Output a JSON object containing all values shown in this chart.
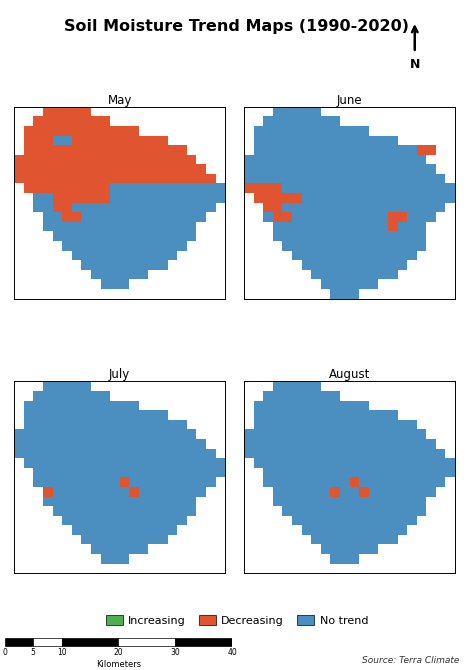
{
  "title": "Soil Moisture Trend Maps (1990-2020)",
  "months": [
    "May",
    "June",
    "July",
    "August"
  ],
  "colors": {
    "increasing": "#4CAF50",
    "decreasing": "#E05530",
    "no_trend": "#4A8FC0",
    "background": "#FFFFFF"
  },
  "legend": [
    {
      "label": "Increasing",
      "color": "#4CAF50"
    },
    {
      "label": "Decreasing",
      "color": "#E05530"
    },
    {
      "label": "No trend",
      "color": "#4A8FC0"
    }
  ],
  "may_grid": [
    [
      0,
      0,
      0,
      3,
      3,
      3,
      3,
      3,
      0,
      0,
      0,
      0,
      0,
      0,
      0,
      0,
      0,
      0,
      0,
      0,
      0,
      0
    ],
    [
      0,
      0,
      3,
      3,
      3,
      3,
      3,
      3,
      3,
      3,
      0,
      0,
      0,
      0,
      0,
      0,
      0,
      0,
      0,
      0,
      0,
      0
    ],
    [
      0,
      3,
      3,
      3,
      3,
      3,
      3,
      3,
      3,
      3,
      3,
      3,
      3,
      0,
      0,
      0,
      0,
      0,
      0,
      0,
      0,
      0
    ],
    [
      0,
      3,
      3,
      3,
      2,
      2,
      3,
      3,
      3,
      3,
      3,
      3,
      3,
      3,
      3,
      3,
      0,
      0,
      0,
      0,
      0,
      0
    ],
    [
      0,
      3,
      3,
      3,
      3,
      3,
      3,
      3,
      3,
      3,
      3,
      3,
      3,
      3,
      3,
      3,
      3,
      3,
      0,
      0,
      0,
      0
    ],
    [
      3,
      3,
      3,
      3,
      3,
      3,
      3,
      3,
      3,
      3,
      3,
      3,
      3,
      3,
      3,
      3,
      3,
      3,
      3,
      0,
      0,
      0
    ],
    [
      3,
      3,
      3,
      3,
      3,
      3,
      3,
      3,
      3,
      3,
      3,
      3,
      3,
      3,
      3,
      3,
      3,
      3,
      3,
      3,
      0,
      0
    ],
    [
      3,
      3,
      3,
      3,
      3,
      3,
      3,
      3,
      3,
      3,
      3,
      3,
      3,
      3,
      3,
      3,
      3,
      3,
      3,
      3,
      3,
      0
    ],
    [
      0,
      3,
      3,
      3,
      3,
      3,
      3,
      3,
      3,
      3,
      2,
      2,
      2,
      2,
      2,
      2,
      2,
      2,
      2,
      2,
      2,
      2
    ],
    [
      0,
      0,
      2,
      2,
      3,
      3,
      3,
      3,
      3,
      3,
      2,
      2,
      2,
      2,
      2,
      2,
      2,
      2,
      2,
      2,
      2,
      2
    ],
    [
      0,
      0,
      2,
      2,
      3,
      3,
      2,
      2,
      2,
      2,
      2,
      2,
      2,
      2,
      2,
      2,
      2,
      2,
      2,
      2,
      2,
      0
    ],
    [
      0,
      0,
      0,
      2,
      2,
      3,
      3,
      2,
      2,
      2,
      2,
      2,
      2,
      2,
      2,
      2,
      2,
      2,
      2,
      2,
      0,
      0
    ],
    [
      0,
      0,
      0,
      2,
      2,
      2,
      2,
      2,
      2,
      2,
      2,
      2,
      2,
      2,
      2,
      2,
      2,
      2,
      2,
      0,
      0,
      0
    ],
    [
      0,
      0,
      0,
      0,
      2,
      2,
      2,
      2,
      2,
      2,
      2,
      2,
      2,
      2,
      2,
      2,
      2,
      2,
      2,
      0,
      0,
      0
    ],
    [
      0,
      0,
      0,
      0,
      0,
      2,
      2,
      2,
      2,
      2,
      2,
      2,
      2,
      2,
      2,
      2,
      2,
      2,
      0,
      0,
      0,
      0
    ],
    [
      0,
      0,
      0,
      0,
      0,
      0,
      2,
      2,
      2,
      2,
      2,
      2,
      2,
      2,
      2,
      2,
      2,
      0,
      0,
      0,
      0,
      0
    ],
    [
      0,
      0,
      0,
      0,
      0,
      0,
      0,
      2,
      2,
      2,
      2,
      2,
      2,
      2,
      2,
      2,
      0,
      0,
      0,
      0,
      0,
      0
    ],
    [
      0,
      0,
      0,
      0,
      0,
      0,
      0,
      0,
      2,
      2,
      2,
      2,
      2,
      2,
      0,
      0,
      0,
      0,
      0,
      0,
      0,
      0
    ],
    [
      0,
      0,
      0,
      0,
      0,
      0,
      0,
      0,
      0,
      2,
      2,
      2,
      0,
      0,
      0,
      0,
      0,
      0,
      0,
      0,
      0,
      0
    ],
    [
      0,
      0,
      0,
      0,
      0,
      0,
      0,
      0,
      0,
      0,
      0,
      0,
      0,
      0,
      0,
      0,
      0,
      0,
      0,
      0,
      0,
      0
    ]
  ],
  "june_grid": [
    [
      0,
      0,
      0,
      2,
      2,
      2,
      2,
      2,
      0,
      0,
      0,
      0,
      0,
      0,
      0,
      0,
      0,
      0,
      0,
      0,
      0,
      0
    ],
    [
      0,
      0,
      2,
      2,
      2,
      2,
      2,
      2,
      2,
      2,
      0,
      0,
      0,
      0,
      0,
      0,
      0,
      0,
      0,
      0,
      0,
      0
    ],
    [
      0,
      2,
      2,
      2,
      2,
      2,
      2,
      2,
      2,
      2,
      2,
      2,
      2,
      0,
      0,
      0,
      0,
      0,
      0,
      0,
      0,
      0
    ],
    [
      0,
      2,
      2,
      2,
      2,
      2,
      2,
      2,
      2,
      2,
      2,
      2,
      2,
      2,
      2,
      2,
      0,
      0,
      0,
      0,
      0,
      0
    ],
    [
      0,
      2,
      2,
      2,
      2,
      2,
      2,
      2,
      2,
      2,
      2,
      2,
      2,
      2,
      2,
      2,
      2,
      2,
      3,
      3,
      0,
      0
    ],
    [
      2,
      2,
      2,
      2,
      2,
      2,
      2,
      2,
      2,
      2,
      2,
      2,
      2,
      2,
      2,
      2,
      2,
      2,
      2,
      0,
      0,
      0
    ],
    [
      2,
      2,
      2,
      2,
      2,
      2,
      2,
      2,
      2,
      2,
      2,
      2,
      2,
      2,
      2,
      2,
      2,
      2,
      2,
      2,
      0,
      0
    ],
    [
      2,
      2,
      2,
      2,
      2,
      2,
      2,
      2,
      2,
      2,
      2,
      2,
      2,
      2,
      2,
      2,
      2,
      2,
      2,
      2,
      2,
      0
    ],
    [
      3,
      3,
      3,
      3,
      2,
      2,
      2,
      2,
      2,
      2,
      2,
      2,
      2,
      2,
      2,
      2,
      2,
      2,
      2,
      2,
      2,
      2
    ],
    [
      0,
      3,
      3,
      3,
      3,
      3,
      2,
      2,
      2,
      2,
      2,
      2,
      2,
      2,
      2,
      2,
      2,
      2,
      2,
      2,
      2,
      2
    ],
    [
      0,
      0,
      3,
      3,
      2,
      2,
      2,
      2,
      2,
      2,
      2,
      2,
      2,
      2,
      2,
      2,
      2,
      2,
      2,
      2,
      2,
      0
    ],
    [
      0,
      0,
      2,
      3,
      3,
      2,
      2,
      2,
      2,
      2,
      2,
      2,
      2,
      2,
      2,
      3,
      3,
      2,
      2,
      2,
      0,
      0
    ],
    [
      0,
      0,
      0,
      2,
      2,
      2,
      2,
      2,
      2,
      2,
      2,
      2,
      2,
      2,
      2,
      3,
      2,
      2,
      2,
      0,
      0,
      0
    ],
    [
      0,
      0,
      0,
      2,
      2,
      2,
      2,
      2,
      2,
      2,
      2,
      2,
      2,
      2,
      2,
      2,
      2,
      2,
      2,
      0,
      0,
      0
    ],
    [
      0,
      0,
      0,
      0,
      2,
      2,
      2,
      2,
      2,
      2,
      2,
      2,
      2,
      2,
      2,
      2,
      2,
      2,
      2,
      0,
      0,
      0
    ],
    [
      0,
      0,
      0,
      0,
      0,
      2,
      2,
      2,
      2,
      2,
      2,
      2,
      2,
      2,
      2,
      2,
      2,
      2,
      0,
      0,
      0,
      0
    ],
    [
      0,
      0,
      0,
      0,
      0,
      0,
      2,
      2,
      2,
      2,
      2,
      2,
      2,
      2,
      2,
      2,
      2,
      0,
      0,
      0,
      0,
      0
    ],
    [
      0,
      0,
      0,
      0,
      0,
      0,
      0,
      2,
      2,
      2,
      2,
      2,
      2,
      2,
      2,
      2,
      0,
      0,
      0,
      0,
      0,
      0
    ],
    [
      0,
      0,
      0,
      0,
      0,
      0,
      0,
      0,
      2,
      2,
      2,
      2,
      2,
      2,
      0,
      0,
      0,
      0,
      0,
      0,
      0,
      0
    ],
    [
      0,
      0,
      0,
      0,
      0,
      0,
      0,
      0,
      0,
      2,
      2,
      2,
      0,
      0,
      0,
      0,
      0,
      0,
      0,
      0,
      0,
      0
    ]
  ],
  "july_grid": [
    [
      0,
      0,
      0,
      2,
      2,
      2,
      2,
      2,
      0,
      0,
      0,
      0,
      0,
      0,
      0,
      0,
      0,
      0,
      0,
      0,
      0,
      0
    ],
    [
      0,
      0,
      2,
      2,
      2,
      2,
      2,
      2,
      2,
      2,
      0,
      0,
      0,
      0,
      0,
      0,
      0,
      0,
      0,
      0,
      0,
      0
    ],
    [
      0,
      2,
      2,
      2,
      2,
      2,
      2,
      2,
      2,
      2,
      2,
      2,
      2,
      0,
      0,
      0,
      0,
      0,
      0,
      0,
      0,
      0
    ],
    [
      0,
      2,
      2,
      2,
      2,
      2,
      2,
      2,
      2,
      2,
      2,
      2,
      2,
      2,
      2,
      2,
      0,
      0,
      0,
      0,
      0,
      0
    ],
    [
      0,
      2,
      2,
      2,
      2,
      2,
      2,
      2,
      2,
      2,
      2,
      2,
      2,
      2,
      2,
      2,
      2,
      2,
      0,
      0,
      0,
      0
    ],
    [
      2,
      2,
      2,
      2,
      2,
      2,
      2,
      2,
      2,
      2,
      2,
      2,
      2,
      2,
      2,
      2,
      2,
      2,
      2,
      0,
      0,
      0
    ],
    [
      2,
      2,
      2,
      2,
      2,
      2,
      2,
      2,
      2,
      2,
      2,
      2,
      2,
      2,
      2,
      2,
      2,
      2,
      2,
      2,
      0,
      0
    ],
    [
      2,
      2,
      2,
      2,
      2,
      2,
      2,
      2,
      2,
      2,
      2,
      2,
      2,
      2,
      2,
      2,
      2,
      2,
      2,
      2,
      2,
      0
    ],
    [
      0,
      2,
      2,
      2,
      2,
      2,
      2,
      2,
      2,
      2,
      2,
      2,
      2,
      2,
      2,
      2,
      2,
      2,
      2,
      2,
      2,
      2
    ],
    [
      0,
      0,
      2,
      2,
      2,
      2,
      2,
      2,
      2,
      2,
      2,
      2,
      2,
      2,
      2,
      2,
      2,
      2,
      2,
      2,
      2,
      2
    ],
    [
      0,
      0,
      2,
      2,
      2,
      2,
      2,
      2,
      2,
      2,
      2,
      3,
      2,
      2,
      2,
      2,
      2,
      2,
      2,
      2,
      2,
      0
    ],
    [
      0,
      0,
      0,
      3,
      2,
      2,
      2,
      2,
      2,
      2,
      2,
      2,
      3,
      2,
      2,
      2,
      2,
      2,
      2,
      2,
      0,
      0
    ],
    [
      0,
      0,
      0,
      2,
      2,
      2,
      2,
      2,
      2,
      2,
      2,
      2,
      2,
      2,
      2,
      2,
      2,
      2,
      2,
      0,
      0,
      0
    ],
    [
      0,
      0,
      0,
      0,
      2,
      2,
      2,
      2,
      2,
      2,
      2,
      2,
      2,
      2,
      2,
      2,
      2,
      2,
      2,
      0,
      0,
      0
    ],
    [
      0,
      0,
      0,
      0,
      0,
      2,
      2,
      2,
      2,
      2,
      2,
      2,
      2,
      2,
      2,
      2,
      2,
      2,
      0,
      0,
      0,
      0
    ],
    [
      0,
      0,
      0,
      0,
      0,
      0,
      2,
      2,
      2,
      2,
      2,
      2,
      2,
      2,
      2,
      2,
      2,
      0,
      0,
      0,
      0,
      0
    ],
    [
      0,
      0,
      0,
      0,
      0,
      0,
      0,
      2,
      2,
      2,
      2,
      2,
      2,
      2,
      2,
      2,
      0,
      0,
      0,
      0,
      0,
      0
    ],
    [
      0,
      0,
      0,
      0,
      0,
      0,
      0,
      0,
      2,
      2,
      2,
      2,
      2,
      2,
      0,
      0,
      0,
      0,
      0,
      0,
      0,
      0
    ],
    [
      0,
      0,
      0,
      0,
      0,
      0,
      0,
      0,
      0,
      2,
      2,
      2,
      0,
      0,
      0,
      0,
      0,
      0,
      0,
      0,
      0,
      0
    ],
    [
      0,
      0,
      0,
      0,
      0,
      0,
      0,
      0,
      0,
      0,
      0,
      0,
      0,
      0,
      0,
      0,
      0,
      0,
      0,
      0,
      0,
      0
    ]
  ],
  "august_grid": [
    [
      0,
      0,
      0,
      2,
      2,
      2,
      2,
      2,
      0,
      0,
      0,
      0,
      0,
      0,
      0,
      0,
      0,
      0,
      0,
      0,
      0,
      0
    ],
    [
      0,
      0,
      2,
      2,
      2,
      2,
      2,
      2,
      2,
      2,
      0,
      0,
      0,
      0,
      0,
      0,
      0,
      0,
      0,
      0,
      0,
      0
    ],
    [
      0,
      2,
      2,
      2,
      2,
      2,
      2,
      2,
      2,
      2,
      2,
      2,
      2,
      0,
      0,
      0,
      0,
      0,
      0,
      0,
      0,
      0
    ],
    [
      0,
      2,
      2,
      2,
      2,
      2,
      2,
      2,
      2,
      2,
      2,
      2,
      2,
      2,
      2,
      2,
      0,
      0,
      0,
      0,
      0,
      0
    ],
    [
      0,
      2,
      2,
      2,
      2,
      2,
      2,
      2,
      2,
      2,
      2,
      2,
      2,
      2,
      2,
      2,
      2,
      2,
      0,
      0,
      0,
      0
    ],
    [
      2,
      2,
      2,
      2,
      2,
      2,
      2,
      2,
      2,
      2,
      2,
      2,
      2,
      2,
      2,
      2,
      2,
      2,
      2,
      0,
      0,
      0
    ],
    [
      2,
      2,
      2,
      2,
      2,
      2,
      2,
      2,
      2,
      2,
      2,
      2,
      2,
      2,
      2,
      2,
      2,
      2,
      2,
      2,
      0,
      0
    ],
    [
      2,
      2,
      2,
      2,
      2,
      2,
      2,
      2,
      2,
      2,
      2,
      2,
      2,
      2,
      2,
      2,
      2,
      2,
      2,
      2,
      2,
      0
    ],
    [
      0,
      2,
      2,
      2,
      2,
      2,
      2,
      2,
      2,
      2,
      2,
      2,
      2,
      2,
      2,
      2,
      2,
      2,
      2,
      2,
      2,
      2
    ],
    [
      0,
      0,
      2,
      2,
      2,
      2,
      2,
      2,
      2,
      2,
      2,
      2,
      2,
      2,
      2,
      2,
      2,
      2,
      2,
      2,
      2,
      2
    ],
    [
      0,
      0,
      2,
      2,
      2,
      2,
      2,
      2,
      2,
      2,
      2,
      3,
      2,
      2,
      2,
      2,
      2,
      2,
      2,
      2,
      2,
      0
    ],
    [
      0,
      0,
      0,
      2,
      2,
      2,
      2,
      2,
      2,
      3,
      2,
      2,
      3,
      2,
      2,
      2,
      2,
      2,
      2,
      2,
      0,
      0
    ],
    [
      0,
      0,
      0,
      2,
      2,
      2,
      2,
      2,
      2,
      2,
      2,
      2,
      2,
      2,
      2,
      2,
      2,
      2,
      2,
      0,
      0,
      0
    ],
    [
      0,
      0,
      0,
      0,
      2,
      2,
      2,
      2,
      2,
      2,
      2,
      2,
      2,
      2,
      2,
      2,
      2,
      2,
      2,
      0,
      0,
      0
    ],
    [
      0,
      0,
      0,
      0,
      0,
      2,
      2,
      2,
      2,
      2,
      2,
      2,
      2,
      2,
      2,
      2,
      2,
      2,
      0,
      0,
      0,
      0
    ],
    [
      0,
      0,
      0,
      0,
      0,
      0,
      2,
      2,
      2,
      2,
      2,
      2,
      2,
      2,
      2,
      2,
      2,
      0,
      0,
      0,
      0,
      0
    ],
    [
      0,
      0,
      0,
      0,
      0,
      0,
      0,
      2,
      2,
      2,
      2,
      2,
      2,
      2,
      2,
      2,
      0,
      0,
      0,
      0,
      0,
      0
    ],
    [
      0,
      0,
      0,
      0,
      0,
      0,
      0,
      0,
      2,
      2,
      2,
      2,
      2,
      2,
      0,
      0,
      0,
      0,
      0,
      0,
      0,
      0
    ],
    [
      0,
      0,
      0,
      0,
      0,
      0,
      0,
      0,
      0,
      2,
      2,
      2,
      0,
      0,
      0,
      0,
      0,
      0,
      0,
      0,
      0,
      0
    ],
    [
      0,
      0,
      0,
      0,
      0,
      0,
      0,
      0,
      0,
      0,
      0,
      0,
      0,
      0,
      0,
      0,
      0,
      0,
      0,
      0,
      0,
      0
    ]
  ]
}
